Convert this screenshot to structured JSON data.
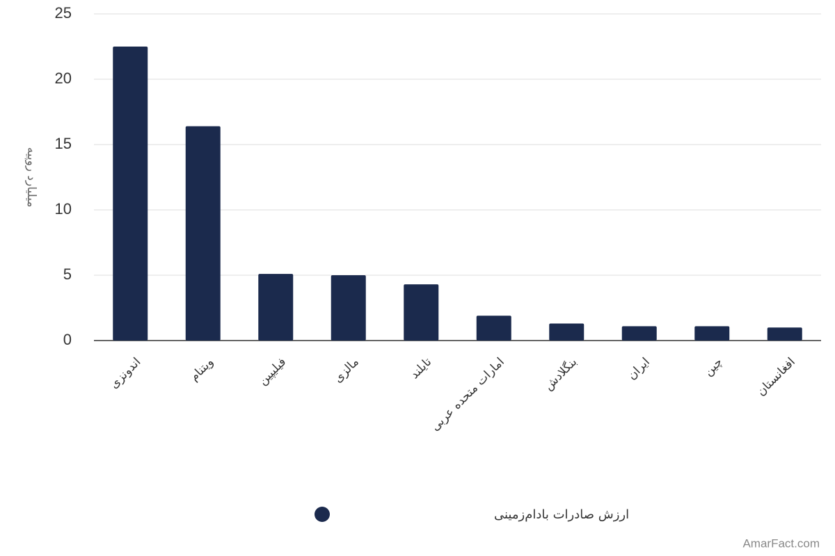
{
  "chart_data": {
    "type": "bar",
    "y_label": "میلیارد روپیه",
    "categories": [
      "اندونزی",
      "ویتنام",
      "فیلیپین",
      "مالزی",
      "تایلند",
      "امارات متحده عربی",
      "بنگلادش",
      "ایران",
      "چین",
      "افغانستان"
    ],
    "series": [
      {
        "name": "ارزش صادرات بادام‌زمینی",
        "color": "#1b2a4d",
        "values": [
          22.5,
          16.4,
          5.1,
          5.0,
          4.3,
          1.9,
          1.3,
          1.1,
          1.1,
          1.0
        ]
      }
    ],
    "ylim": [
      0,
      25
    ],
    "yticks": [
      0,
      5,
      10,
      15,
      20,
      25
    ],
    "grid": true,
    "watermark": "AmarFact.com"
  }
}
